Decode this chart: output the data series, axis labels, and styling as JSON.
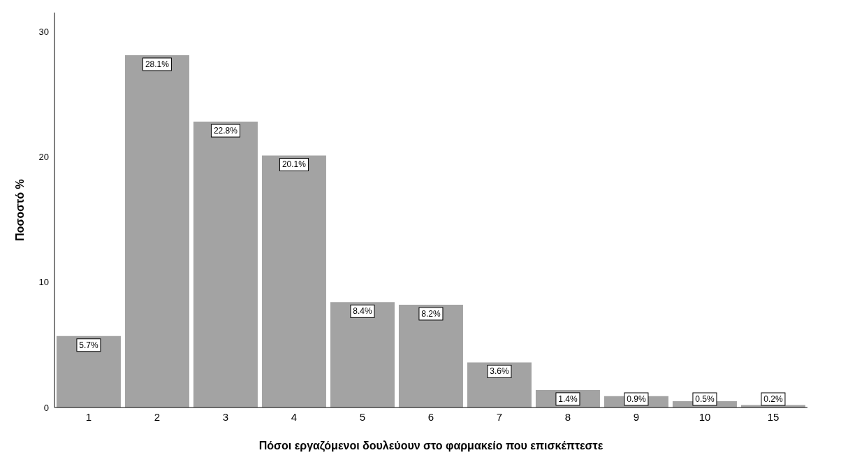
{
  "chart_data": {
    "type": "bar",
    "xlabel": "Πόσοι εργαζόμενοι δουλεύουν στο φαρμακείο που επισκέπτεστε",
    "ylabel": "Ποσοστό %",
    "categories": [
      "1",
      "2",
      "3",
      "4",
      "5",
      "6",
      "7",
      "8",
      "9",
      "10",
      "15"
    ],
    "values": [
      5.7,
      28.1,
      22.8,
      20.1,
      8.4,
      8.2,
      3.6,
      1.4,
      0.9,
      0.5,
      0.2
    ],
    "value_labels": [
      "5.7%",
      "28.1%",
      "22.8%",
      "20.1%",
      "8.4%",
      "8.2%",
      "3.6%",
      "1.4%",
      "0.9%",
      "0.5%",
      "0.2%"
    ],
    "color": "#a3a3a3",
    "ylim": [
      0,
      31.5
    ],
    "yticks": [
      0,
      10,
      20,
      30
    ],
    "grid": false,
    "legend": false
  }
}
